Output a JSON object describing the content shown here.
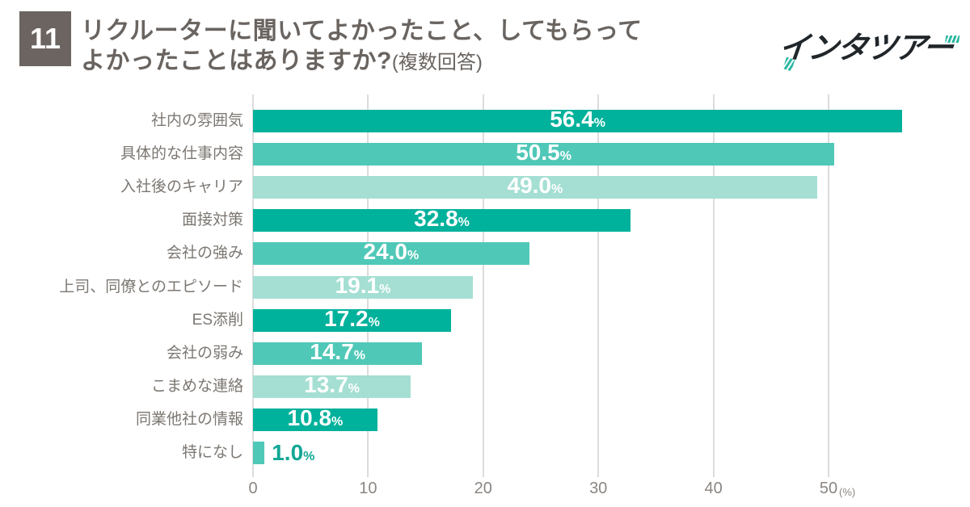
{
  "header": {
    "question_number": "11",
    "title_line1": "リクルーターに聞いてよかったこと、してもらって",
    "title_line2": "よかったことはありますか?",
    "title_note": "(複数回答)",
    "logo_text": "インタツアー"
  },
  "chart_data": {
    "type": "bar",
    "orientation": "horizontal",
    "title": "リクルーターに聞いてよかったこと、してもらってよかったことはありますか?(複数回答)",
    "categories": [
      "社内の雰囲気",
      "具体的な仕事内容",
      "入社後のキャリア",
      "面接対策",
      "会社の強み",
      "上司、同僚とのエピソード",
      "ES添削",
      "会社の弱み",
      "こまめな連絡",
      "同業他社の情報",
      "特になし"
    ],
    "values": [
      56.4,
      50.5,
      49.0,
      32.8,
      24.0,
      19.1,
      17.2,
      14.7,
      13.7,
      10.8,
      1.0
    ],
    "unit": "%",
    "xlabel": "(%)",
    "xticks": [
      0,
      10,
      20,
      30,
      40,
      50
    ],
    "xlim": [
      0,
      57.5
    ],
    "grid": true,
    "legend": "none",
    "bar_color_cycle": [
      "#00b19b",
      "#50c8b7",
      "#a5dfd3"
    ],
    "value_label_color_inside": "#ffffff",
    "value_label_color_outside": "#12a795"
  }
}
